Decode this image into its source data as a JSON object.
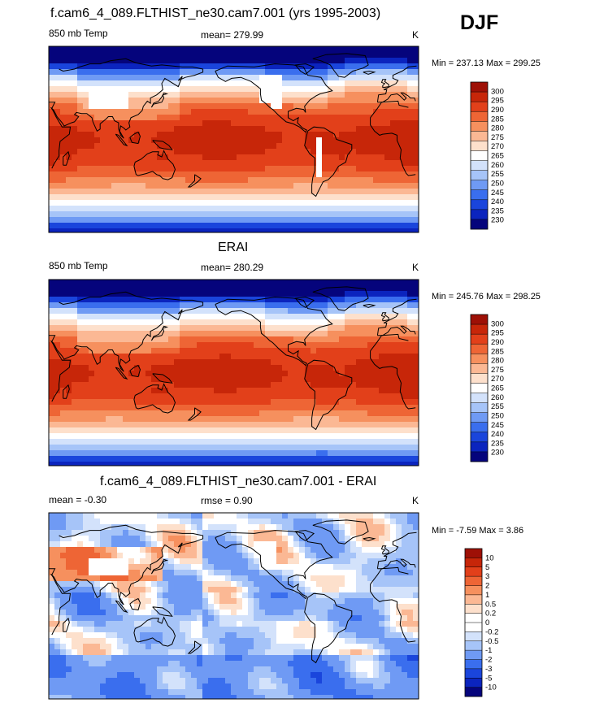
{
  "season": "DJF",
  "colors": {
    "abs_scale": [
      "#05047c",
      "#0b24be",
      "#1a45dc",
      "#3a6eee",
      "#6f9af4",
      "#a6c4f8",
      "#d3e2fb",
      "#ffffff",
      "#fde0cc",
      "#fbb894",
      "#f6905e",
      "#ee6535",
      "#e2401a",
      "#c72609",
      "#9e1006"
    ],
    "diff_scale": [
      "#05047c",
      "#0b24be",
      "#1a45dc",
      "#3a6eee",
      "#6f9af4",
      "#a6c4f8",
      "#d3e2fb",
      "#ffffff",
      "#ffffff",
      "#fde0cc",
      "#fbb894",
      "#f6905e",
      "#ee6535",
      "#e2401a",
      "#c72609",
      "#9e1006"
    ],
    "land_white": "#ffffff",
    "coast": "#000000"
  },
  "panels": [
    {
      "title": "f.cam6_4_089.FLTHIST_ne30.cam7.001 (yrs 1995-2003)",
      "left_label": "850 mb Temp",
      "center_label": "mean= 279.99",
      "units": "K",
      "minmax": "Min = 237.13 Max = 299.25"
    },
    {
      "title": "ERAI",
      "left_label": "850 mb Temp",
      "center_label": "mean= 280.29",
      "units": "K",
      "minmax": "Min = 245.76 Max = 298.25"
    },
    {
      "title": "f.cam6_4_089.FLTHIST_ne30.cam7.001 - ERAI",
      "left_label": "mean =  -0.30",
      "center_label": "rmse =   0.90",
      "units": "K",
      "minmax": "Min =  -7.59 Max =   3.86"
    }
  ],
  "chart_data": [
    {
      "type": "heatmap",
      "title": "f.cam6_4_089.FLTHIST_ne30.cam7.001 (yrs 1995-2003)",
      "variable": "850 mb Temp",
      "units": "K",
      "mean": 279.99,
      "min": 237.13,
      "max": 299.25,
      "colorbar_levels": [
        "230",
        "235",
        "240",
        "245",
        "250",
        "255",
        "260",
        "265",
        "270",
        "275",
        "280",
        "285",
        "290",
        "295",
        "300"
      ]
    },
    {
      "type": "heatmap",
      "title": "ERAI",
      "variable": "850 mb Temp",
      "units": "K",
      "mean": 280.29,
      "min": 245.76,
      "max": 298.25,
      "colorbar_levels": [
        "230",
        "235",
        "240",
        "245",
        "250",
        "255",
        "260",
        "265",
        "270",
        "275",
        "280",
        "285",
        "290",
        "295",
        "300"
      ]
    },
    {
      "type": "heatmap",
      "title": "f.cam6_4_089.FLTHIST_ne30.cam7.001 - ERAI",
      "units": "K",
      "mean": -0.3,
      "rmse": 0.9,
      "min": -7.59,
      "max": 3.86,
      "colorbar_levels": [
        "-10",
        "-5",
        "-3",
        "-2",
        "-1",
        "-0.5",
        "-0.2",
        "0",
        "0.2",
        "0.5",
        "1",
        "2",
        "3",
        "5",
        "10"
      ]
    }
  ]
}
